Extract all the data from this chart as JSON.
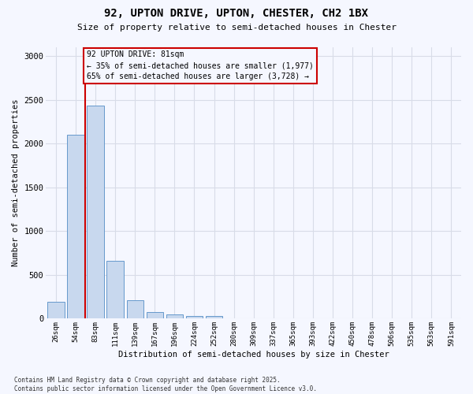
{
  "title1": "92, UPTON DRIVE, UPTON, CHESTER, CH2 1BX",
  "title2": "Size of property relative to semi-detached houses in Chester",
  "xlabel": "Distribution of semi-detached houses by size in Chester",
  "ylabel": "Number of semi-detached properties",
  "categories": [
    "26sqm",
    "54sqm",
    "83sqm",
    "111sqm",
    "139sqm",
    "167sqm",
    "196sqm",
    "224sqm",
    "252sqm",
    "280sqm",
    "309sqm",
    "337sqm",
    "365sqm",
    "393sqm",
    "422sqm",
    "450sqm",
    "478sqm",
    "506sqm",
    "535sqm",
    "563sqm",
    "591sqm"
  ],
  "values": [
    190,
    2100,
    2430,
    660,
    210,
    80,
    45,
    35,
    30,
    5,
    2,
    1,
    1,
    0,
    0,
    0,
    0,
    0,
    0,
    0,
    0
  ],
  "bar_color": "#c8d8ee",
  "bar_edge_color": "#6699cc",
  "vline_color": "#cc0000",
  "annotation_line1": "92 UPTON DRIVE: 81sqm",
  "annotation_line2": "← 35% of semi-detached houses are smaller (1,977)",
  "annotation_line3": "65% of semi-detached houses are larger (3,728) →",
  "ylim": [
    0,
    3100
  ],
  "yticks": [
    0,
    500,
    1000,
    1500,
    2000,
    2500,
    3000
  ],
  "background_color": "#f5f7ff",
  "grid_color": "#d8dce8",
  "footer1": "Contains HM Land Registry data © Crown copyright and database right 2025.",
  "footer2": "Contains public sector information licensed under the Open Government Licence v3.0."
}
